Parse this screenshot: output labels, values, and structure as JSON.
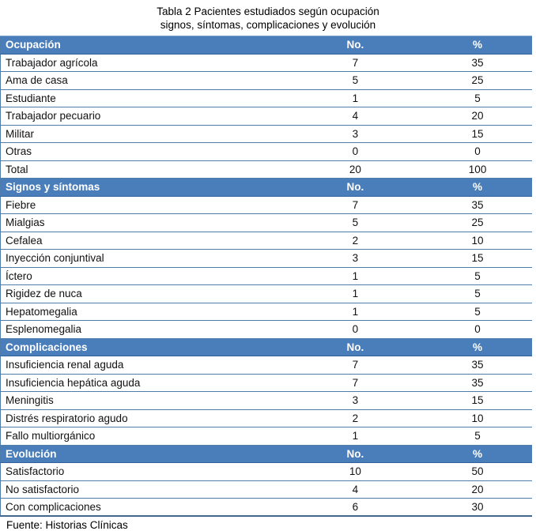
{
  "title": {
    "line1": "Tabla 2 Pacientes estudiados según ocupación",
    "line2": "signos, síntomas, complicaciones y evolución"
  },
  "columns": {
    "no": "No.",
    "pct": "%"
  },
  "sections": [
    {
      "label": "Ocupación",
      "rows": [
        {
          "label": "Trabajador agrícola",
          "no": "7",
          "pct": "35"
        },
        {
          "label": "Ama de casa",
          "no": "5",
          "pct": "25"
        },
        {
          "label": "Estudiante",
          "no": "1",
          "pct": "5"
        },
        {
          "label": "Trabajador pecuario",
          "no": "4",
          "pct": "20"
        },
        {
          "label": "Militar",
          "no": "3",
          "pct": "15"
        },
        {
          "label": "Otras",
          "no": "0",
          "pct": "0"
        },
        {
          "label": "Total",
          "no": "20",
          "pct": "100"
        }
      ]
    },
    {
      "label": "Signos y síntomas",
      "rows": [
        {
          "label": "Fiebre",
          "no": "7",
          "pct": "35"
        },
        {
          "label": "Mialgias",
          "no": "5",
          "pct": "25"
        },
        {
          "label": "Cefalea",
          "no": "2",
          "pct": "10"
        },
        {
          "label": "Inyección conjuntival",
          "no": "3",
          "pct": "15"
        },
        {
          "label": "Íctero",
          "no": "1",
          "pct": "5"
        },
        {
          "label": "Rigidez de nuca",
          "no": "1",
          "pct": "5"
        },
        {
          "label": "Hepatomegalia",
          "no": "1",
          "pct": "5"
        },
        {
          "label": "Esplenomegalia",
          "no": "0",
          "pct": "0"
        }
      ]
    },
    {
      "label": "Complicaciones",
      "rows": [
        {
          "label": "Insuficiencia renal aguda",
          "no": "7",
          "pct": "35"
        },
        {
          "label": "Insuficiencia hepática aguda",
          "no": "7",
          "pct": "35"
        },
        {
          "label": "Meningitis",
          "no": "3",
          "pct": "15"
        },
        {
          "label": "Distrés respiratorio agudo",
          "no": "2",
          "pct": "10"
        },
        {
          "label": "Fallo multiorgánico",
          "no": "1",
          "pct": "5"
        }
      ]
    },
    {
      "label": "Evolución",
      "rows": [
        {
          "label": "Satisfactorio",
          "no": "10",
          "pct": "50"
        },
        {
          "label": "No satisfactorio",
          "no": "4",
          "pct": "20"
        },
        {
          "label": "Con complicaciones",
          "no": "6",
          "pct": "30"
        }
      ]
    }
  ],
  "footer": {
    "source": "Fuente: Historias Clínicas"
  },
  "colors": {
    "header_bg": "#4a7ebb",
    "header_text": "#ffffff",
    "row_border": "#4e7dab",
    "header_top_edge": "#7fa6d2",
    "header_bottom_edge": "#32619b",
    "table_bottom_border": "#44688c",
    "text": "#111111"
  }
}
